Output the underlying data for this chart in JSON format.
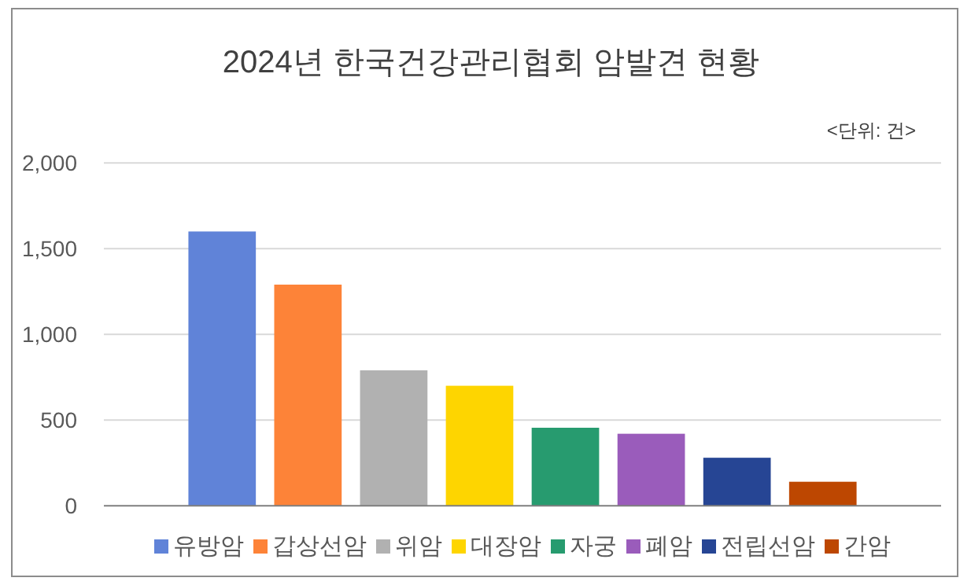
{
  "chart_data": {
    "type": "bar",
    "title": "2024년 한국건강관리협회 암발견 현황",
    "annotations": [
      "<단위: 건>"
    ],
    "categories": [
      null
    ],
    "series": [
      {
        "name": "유방암",
        "color": "#6083d8",
        "values": [
          1600
        ]
      },
      {
        "name": "갑상선암",
        "color": "#fd8338",
        "values": [
          1290
        ]
      },
      {
        "name": "위암",
        "color": "#b1b1b1",
        "values": [
          790
        ]
      },
      {
        "name": "대장암",
        "color": "#fed500",
        "values": [
          700
        ]
      },
      {
        "name": "자궁",
        "color": "#279b6f",
        "values": [
          455
        ]
      },
      {
        "name": "폐암",
        "color": "#9a5cbb",
        "values": [
          420
        ]
      },
      {
        "name": "전립선암",
        "color": "#264594",
        "values": [
          280
        ]
      },
      {
        "name": "간암",
        "color": "#bd4701",
        "values": [
          140
        ]
      }
    ],
    "ylim": [
      0,
      2000
    ],
    "yticks": [
      0,
      500,
      {
        "value": 1000,
        "label": "1,000"
      },
      {
        "value": 1500,
        "label": "1,500"
      },
      {
        "value": 2000,
        "label": "2,000"
      }
    ],
    "grid": "y",
    "legend": "bottom"
  }
}
